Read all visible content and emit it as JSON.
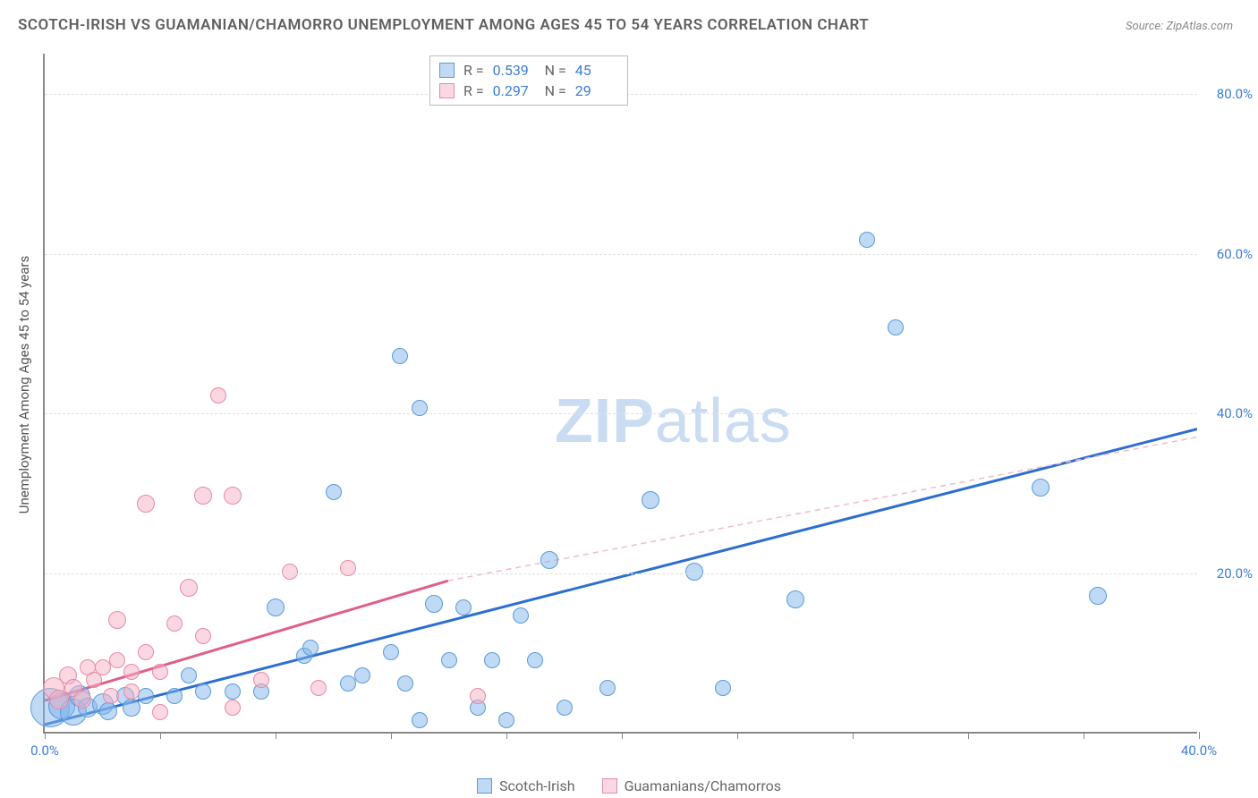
{
  "title": "SCOTCH-IRISH VS GUAMANIAN/CHAMORRO UNEMPLOYMENT AMONG AGES 45 TO 54 YEARS CORRELATION CHART",
  "source_label": "Source:",
  "source_value": "ZipAtlas.com",
  "watermark_bold": "ZIP",
  "watermark_light": "atlas",
  "chart": {
    "type": "scatter",
    "background_color": "#ffffff",
    "grid_color": "#e0e0e0",
    "axis_color": "#888888",
    "value_color": "#3b7dd8",
    "xlabel": "",
    "ylabel": "Unemployment Among Ages 45 to 54 years",
    "label_fontsize": 15,
    "title_fontsize": 17,
    "xlim": [
      0,
      40
    ],
    "ylim": [
      0,
      85
    ],
    "xticks": [
      0,
      4,
      8,
      12,
      16,
      20,
      24,
      28,
      32,
      36,
      40
    ],
    "xtick_labels": {
      "0": "0.0%",
      "40": "40.0%"
    },
    "yticks": [
      20,
      40,
      60,
      80
    ],
    "ytick_labels": {
      "20": "20.0%",
      "40": "40.0%",
      "60": "60.0%",
      "80": "80.0%"
    },
    "point_radius_min": 6,
    "point_radius_max": 22,
    "series": [
      {
        "name": "Scotch-Irish",
        "color_fill": "rgba(130,180,235,0.5)",
        "color_stroke": "#5a9bd8",
        "css_class": "blue",
        "R": "0.539",
        "N": "45",
        "trend": {
          "x1": 0,
          "y1": 1,
          "x2": 40,
          "y2": 38,
          "stroke": "#2d6fd0",
          "width": 3,
          "dash_ext_color": "#9ec3ef"
        },
        "points": [
          {
            "x": 0.2,
            "y": 3.0,
            "r": 22
          },
          {
            "x": 0.6,
            "y": 3.2,
            "r": 15
          },
          {
            "x": 1.0,
            "y": 2.5,
            "r": 15
          },
          {
            "x": 1.2,
            "y": 4.5,
            "r": 12
          },
          {
            "x": 1.5,
            "y": 3.0,
            "r": 11
          },
          {
            "x": 2.0,
            "y": 3.5,
            "r": 12
          },
          {
            "x": 2.2,
            "y": 2.6,
            "r": 10
          },
          {
            "x": 2.8,
            "y": 4.5,
            "r": 10
          },
          {
            "x": 3.0,
            "y": 3.0,
            "r": 10
          },
          {
            "x": 3.5,
            "y": 4.5,
            "r": 9
          },
          {
            "x": 4.5,
            "y": 4.5,
            "r": 9
          },
          {
            "x": 5.0,
            "y": 7.0,
            "r": 9
          },
          {
            "x": 5.5,
            "y": 5.0,
            "r": 9
          },
          {
            "x": 6.5,
            "y": 5.0,
            "r": 9
          },
          {
            "x": 7.5,
            "y": 5.0,
            "r": 9
          },
          {
            "x": 8.0,
            "y": 15.5,
            "r": 10
          },
          {
            "x": 9.0,
            "y": 9.5,
            "r": 9
          },
          {
            "x": 9.2,
            "y": 10.5,
            "r": 9
          },
          {
            "x": 10.0,
            "y": 30.0,
            "r": 9
          },
          {
            "x": 10.5,
            "y": 6.0,
            "r": 9
          },
          {
            "x": 11.0,
            "y": 7.0,
            "r": 9
          },
          {
            "x": 12.0,
            "y": 10.0,
            "r": 9
          },
          {
            "x": 12.3,
            "y": 47.0,
            "r": 9
          },
          {
            "x": 12.5,
            "y": 6.0,
            "r": 9
          },
          {
            "x": 13.0,
            "y": 40.5,
            "r": 9
          },
          {
            "x": 13.5,
            "y": 16.0,
            "r": 10
          },
          {
            "x": 14.0,
            "y": 9.0,
            "r": 9
          },
          {
            "x": 14.5,
            "y": 15.5,
            "r": 9
          },
          {
            "x": 15.0,
            "y": 3.0,
            "r": 9
          },
          {
            "x": 15.5,
            "y": 9.0,
            "r": 9
          },
          {
            "x": 16.5,
            "y": 14.5,
            "r": 9
          },
          {
            "x": 17.0,
            "y": 9.0,
            "r": 9
          },
          {
            "x": 17.5,
            "y": 21.5,
            "r": 10
          },
          {
            "x": 18.0,
            "y": 3.0,
            "r": 9
          },
          {
            "x": 19.5,
            "y": 5.5,
            "r": 9
          },
          {
            "x": 21.0,
            "y": 29.0,
            "r": 10
          },
          {
            "x": 22.5,
            "y": 20.0,
            "r": 10
          },
          {
            "x": 23.5,
            "y": 5.5,
            "r": 9
          },
          {
            "x": 26.0,
            "y": 16.5,
            "r": 10
          },
          {
            "x": 28.5,
            "y": 61.5,
            "r": 9
          },
          {
            "x": 29.5,
            "y": 50.5,
            "r": 9
          },
          {
            "x": 34.5,
            "y": 30.5,
            "r": 10
          },
          {
            "x": 36.5,
            "y": 17.0,
            "r": 10
          },
          {
            "x": 13.0,
            "y": 1.5,
            "r": 9
          },
          {
            "x": 16.0,
            "y": 1.5,
            "r": 9
          }
        ]
      },
      {
        "name": "Guamanians/Chamorros",
        "color_fill": "rgba(245,175,195,0.5)",
        "color_stroke": "#e68aa8",
        "css_class": "pink",
        "R": "0.297",
        "N": "29",
        "trend": {
          "x1": 0,
          "y1": 4,
          "x2": 14,
          "y2": 19,
          "stroke": "#e05f86",
          "width": 3,
          "dash_ext_x2": 40,
          "dash_ext_y2": 37,
          "dash_ext_color": "#f2b9c9"
        },
        "points": [
          {
            "x": 0.3,
            "y": 5.5,
            "r": 12
          },
          {
            "x": 0.5,
            "y": 4.0,
            "r": 11
          },
          {
            "x": 0.8,
            "y": 7.0,
            "r": 10
          },
          {
            "x": 1.0,
            "y": 5.5,
            "r": 10
          },
          {
            "x": 1.3,
            "y": 4.0,
            "r": 10
          },
          {
            "x": 1.5,
            "y": 8.0,
            "r": 9
          },
          {
            "x": 1.7,
            "y": 6.5,
            "r": 9
          },
          {
            "x": 2.0,
            "y": 8.0,
            "r": 9
          },
          {
            "x": 2.3,
            "y": 4.5,
            "r": 9
          },
          {
            "x": 2.5,
            "y": 9.0,
            "r": 9
          },
          {
            "x": 2.5,
            "y": 14.0,
            "r": 10
          },
          {
            "x": 3.0,
            "y": 7.5,
            "r": 9
          },
          {
            "x": 3.0,
            "y": 5.0,
            "r": 9
          },
          {
            "x": 3.5,
            "y": 10.0,
            "r": 9
          },
          {
            "x": 3.5,
            "y": 28.5,
            "r": 10
          },
          {
            "x": 4.0,
            "y": 7.5,
            "r": 9
          },
          {
            "x": 4.0,
            "y": 2.5,
            "r": 9
          },
          {
            "x": 4.5,
            "y": 13.5,
            "r": 9
          },
          {
            "x": 5.0,
            "y": 18.0,
            "r": 10
          },
          {
            "x": 5.5,
            "y": 29.5,
            "r": 10
          },
          {
            "x": 5.5,
            "y": 12.0,
            "r": 9
          },
          {
            "x": 6.0,
            "y": 42.0,
            "r": 9
          },
          {
            "x": 6.5,
            "y": 29.5,
            "r": 10
          },
          {
            "x": 6.5,
            "y": 3.0,
            "r": 9
          },
          {
            "x": 7.5,
            "y": 6.5,
            "r": 9
          },
          {
            "x": 8.5,
            "y": 20.0,
            "r": 9
          },
          {
            "x": 9.5,
            "y": 5.5,
            "r": 9
          },
          {
            "x": 10.5,
            "y": 20.5,
            "r": 9
          },
          {
            "x": 15.0,
            "y": 4.5,
            "r": 9
          }
        ]
      }
    ],
    "stats_labels": {
      "R": "R =",
      "N": "N ="
    }
  },
  "legend": {
    "series1": "Scotch-Irish",
    "series2": "Guamanians/Chamorros"
  }
}
